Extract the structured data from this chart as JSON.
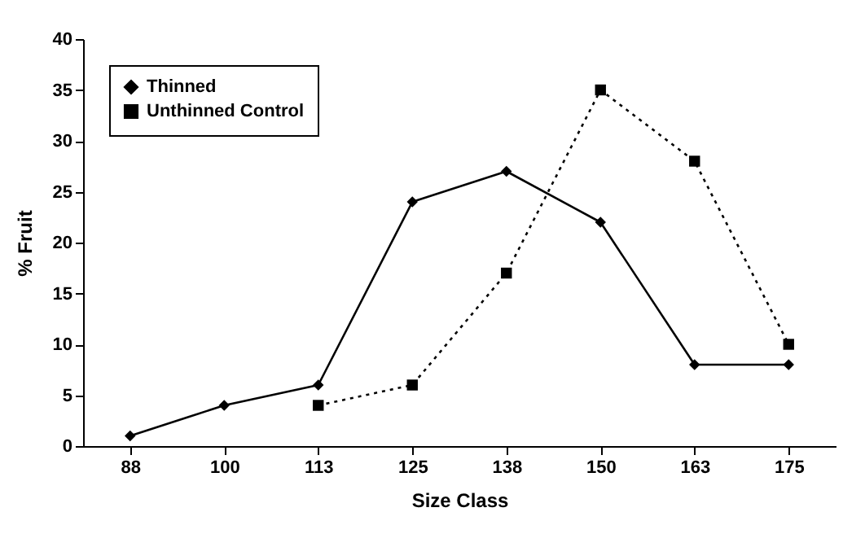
{
  "chart_data": {
    "type": "line",
    "xlabel": "Size Class",
    "ylabel": "% Fruit",
    "categories": [
      "88",
      "100",
      "113",
      "125",
      "138",
      "150",
      "163",
      "175"
    ],
    "series": [
      {
        "name": "Thinned",
        "color": "#000000",
        "marker": "diamond",
        "line_style": "solid",
        "values": [
          1,
          4,
          6,
          24,
          27,
          22,
          8,
          8
        ]
      },
      {
        "name": "Unthinned Control",
        "color": "#000000",
        "marker": "square",
        "line_style": "dotted",
        "values": [
          null,
          null,
          4,
          6,
          17,
          35,
          28,
          10
        ]
      }
    ],
    "ylim": [
      0,
      40
    ],
    "yticks": [
      0,
      5,
      10,
      15,
      20,
      25,
      30,
      35,
      40
    ],
    "grid": false,
    "legend": "top left"
  }
}
